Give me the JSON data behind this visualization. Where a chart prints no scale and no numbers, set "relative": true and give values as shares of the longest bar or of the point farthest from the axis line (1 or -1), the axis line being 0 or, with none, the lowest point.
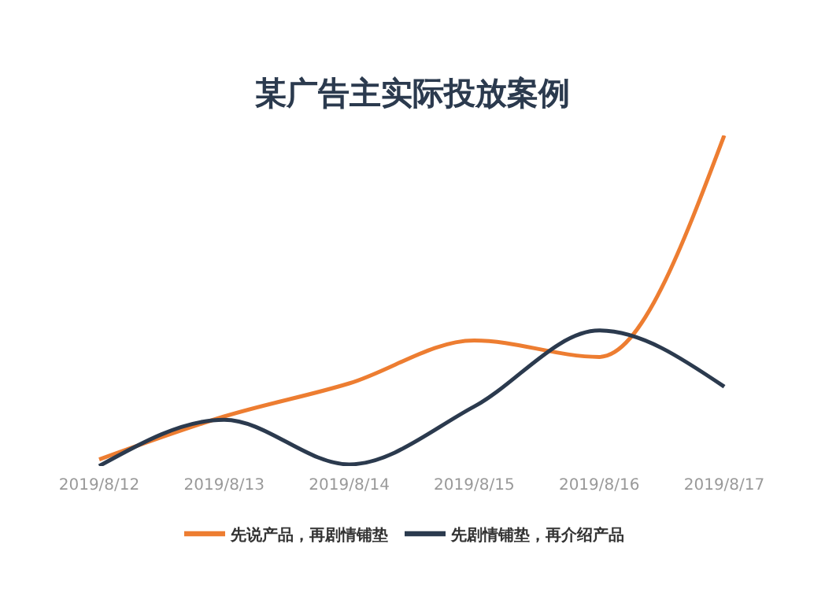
{
  "chart_data": {
    "type": "line",
    "title": "某广告主实际投放案例",
    "relative": true,
    "categories": [
      "2019/8/12",
      "2019/8/13",
      "2019/8/14",
      "2019/8/15",
      "2019/8/16",
      "2019/8/17"
    ],
    "series": [
      {
        "name": "先说产品，再剧情铺垫",
        "color": "#ed7d31",
        "values": [
          0.02,
          0.15,
          0.25,
          0.38,
          0.33,
          1
        ]
      },
      {
        "name": "先剧情铺垫，再介绍产品",
        "color": "#2b3a4e",
        "values": [
          0,
          0.14,
          0.005,
          0.18,
          0.41,
          0.24
        ]
      }
    ],
    "legend": "bottom",
    "grid": false,
    "marker": "none",
    "line_style": "solid"
  }
}
